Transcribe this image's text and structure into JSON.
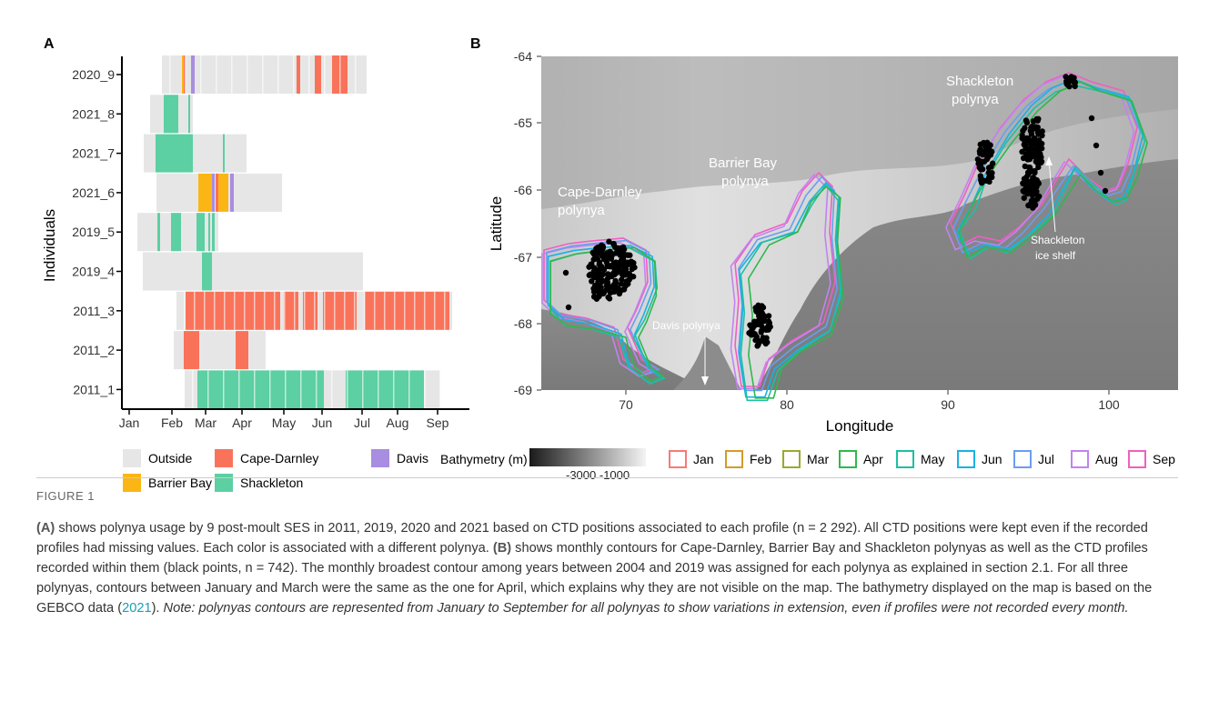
{
  "panel_a": {
    "letter": "A",
    "ylabel": "Individuals",
    "individuals": [
      "2020_9",
      "2021_8",
      "2021_7",
      "2021_6",
      "2019_5",
      "2019_4",
      "2011_3",
      "2011_2",
      "2011_1"
    ],
    "months": [
      "Jan",
      "Feb",
      "Mar",
      "Apr",
      "May",
      "Jun",
      "Jul",
      "Aug",
      "Sep"
    ]
  },
  "panel_b": {
    "letter": "B",
    "xlabel": "Longitude",
    "ylabel": "Latitude",
    "x_ticks": [
      "70",
      "80",
      "90",
      "100"
    ],
    "y_ticks": [
      "-64",
      "-65",
      "-66",
      "-67",
      "-68",
      "-69"
    ],
    "labels": {
      "cape_darnley_1": "Cape-Darnley",
      "cape_darnley_2": "polynya",
      "barrier_bay_1": "Barrier Bay",
      "barrier_bay_2": "polynya",
      "shackleton_1": "Shackleton",
      "shackleton_2": "polynya",
      "davis": "Davis polynya",
      "shelf_1": "Shackleton",
      "shelf_2": "ice shelf"
    }
  },
  "legend_a": [
    {
      "label": "Outside",
      "color": "#e6e6e6"
    },
    {
      "label": "Cape-Darnley",
      "color": "#f9735a"
    },
    {
      "label": "Davis",
      "color": "#a88de0"
    },
    {
      "label": "Barrier Bay",
      "color": "#fbb615"
    },
    {
      "label": "Shackleton",
      "color": "#5ccfa3"
    }
  ],
  "legend_b": {
    "bathy_title": "Bathymetry (m)",
    "bathy_ticks": "-3000 -1000",
    "months": [
      {
        "label": "Jan",
        "color": "#f77b76"
      },
      {
        "label": "Feb",
        "color": "#d49b2a"
      },
      {
        "label": "Mar",
        "color": "#9aaa2c"
      },
      {
        "label": "Apr",
        "color": "#2fb84c"
      },
      {
        "label": "May",
        "color": "#1cc0a2"
      },
      {
        "label": "Jun",
        "color": "#19b2e3"
      },
      {
        "label": "Jul",
        "color": "#6c9df0"
      },
      {
        "label": "Aug",
        "color": "#c283f2"
      },
      {
        "label": "Sep",
        "color": "#f05fc2"
      }
    ]
  },
  "caption": {
    "title": "FIGURE 1",
    "a_label": "(A)",
    "a_text": " shows polynya usage by 9 post-moult SES in 2011, 2019, 2020 and 2021 based on CTD positions associated to each profile (n = 2 292). All CTD positions were kept even if the recorded profiles had missing values. Each color is associated with a different polynya. ",
    "b_label": "(B)",
    "b_text": " shows monthly contours for Cape-Darnley, Barrier Bay and Shackleton polynyas as well as the CTD profiles recorded within them (black points, n = 742). The monthly broadest contour among years between 2004 and 2019 was assigned for each polynya as explained in section 2.1. For all three polynyas, contours between January and March were the same as the one for April, which explains why they are not visible on the map. The bathymetry displayed on the map is based on the GEBCO data (",
    "ref": "2021",
    "b_end": "). ",
    "note": "Note: polynyas contours are represented from January to September for all polynyas to show variations in extension, even if profiles were not recorded every month."
  }
}
